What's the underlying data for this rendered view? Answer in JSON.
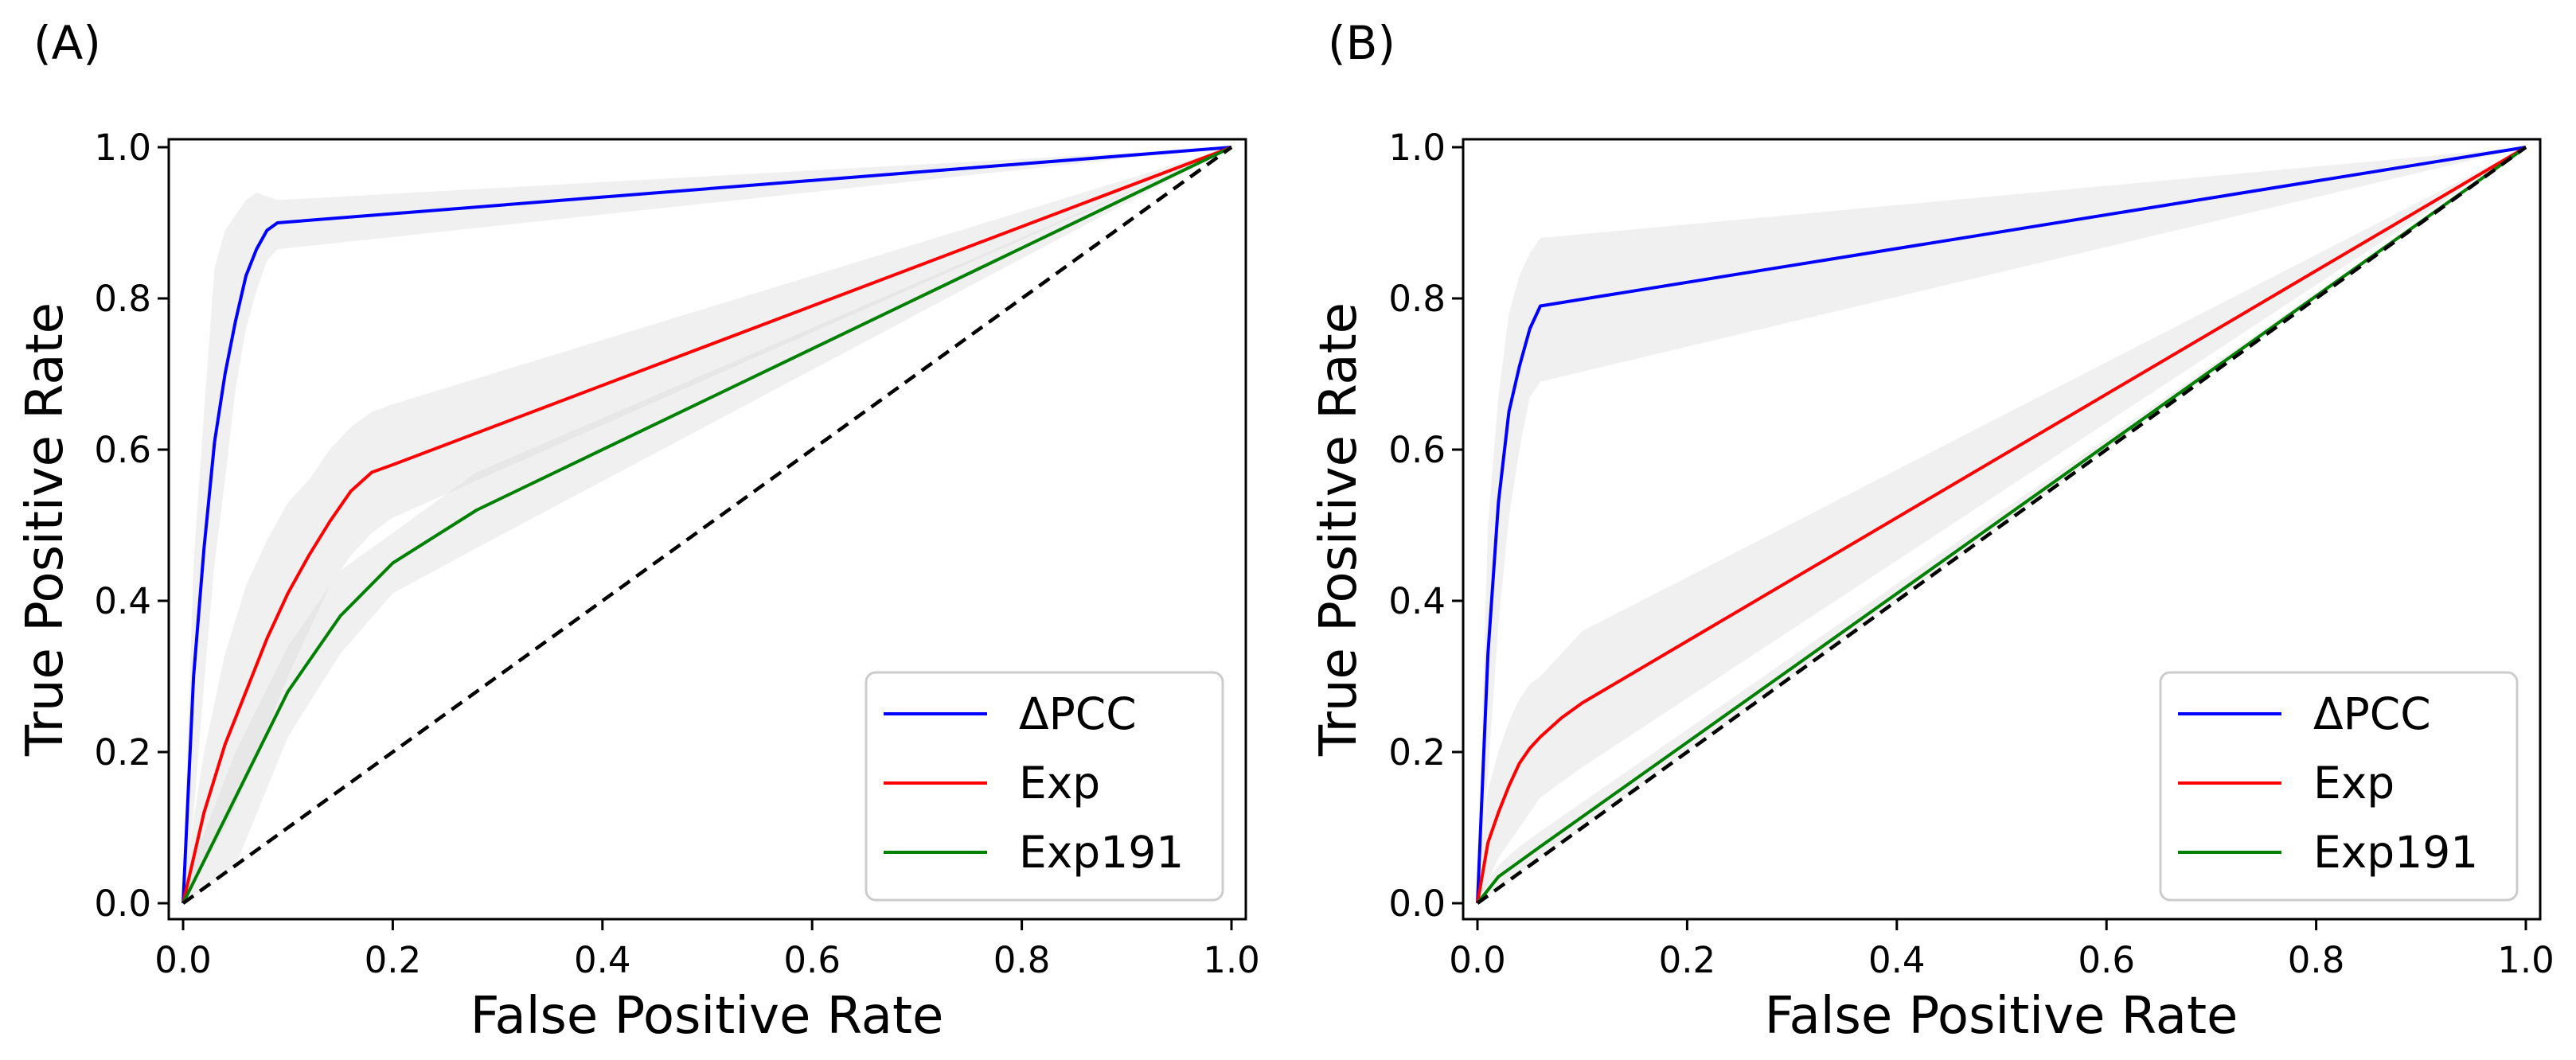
{
  "colors": {
    "dpcc": "#0000ff",
    "exp": "#ff0000",
    "exp191": "#008000",
    "chance": "#000000",
    "band": "#d9d9d9"
  },
  "chart_data": [
    {
      "panel_label": "(A)",
      "type": "line",
      "title": "",
      "xlabel": "False Positive Rate",
      "ylabel": "True Positive Rate",
      "xlim": [
        0.0,
        1.0
      ],
      "ylim": [
        0.0,
        1.0
      ],
      "xticks": [
        "0.0",
        "0.2",
        "0.4",
        "0.6",
        "0.8",
        "1.0"
      ],
      "yticks": [
        "0.0",
        "0.2",
        "0.4",
        "0.6",
        "0.8",
        "1.0"
      ],
      "grid": false,
      "legend_position": "lower-right",
      "series": [
        {
          "name": "ΔPCC",
          "color": "#0000ff",
          "x": [
            0,
            0.01,
            0.02,
            0.03,
            0.04,
            0.05,
            0.06,
            0.07,
            0.08,
            0.09,
            1.0
          ],
          "y": [
            0,
            0.3,
            0.47,
            0.61,
            0.7,
            0.77,
            0.83,
            0.865,
            0.89,
            0.9,
            1.0
          ],
          "band_upper": [
            0.02,
            0.45,
            0.65,
            0.84,
            0.89,
            0.91,
            0.93,
            0.94,
            0.935,
            0.93,
            1.0
          ],
          "band_lower": [
            0,
            0.12,
            0.29,
            0.45,
            0.56,
            0.68,
            0.76,
            0.81,
            0.85,
            0.865,
            1.0
          ]
        },
        {
          "name": "Exp",
          "color": "#ff0000",
          "x": [
            0,
            0.02,
            0.04,
            0.06,
            0.08,
            0.1,
            0.12,
            0.14,
            0.16,
            0.18,
            0.2,
            1.0
          ],
          "y": [
            0,
            0.12,
            0.21,
            0.28,
            0.35,
            0.41,
            0.46,
            0.505,
            0.545,
            0.57,
            0.58,
            1.0
          ],
          "band_upper": [
            0.02,
            0.2,
            0.33,
            0.42,
            0.48,
            0.53,
            0.56,
            0.6,
            0.63,
            0.65,
            0.66,
            1.0
          ],
          "band_lower": [
            0,
            0.05,
            0.1,
            0.16,
            0.23,
            0.3,
            0.36,
            0.42,
            0.46,
            0.49,
            0.51,
            1.0
          ]
        },
        {
          "name": "Exp191",
          "color": "#008000",
          "x": [
            0,
            0.05,
            0.1,
            0.15,
            0.2,
            0.28,
            1.0
          ],
          "y": [
            0,
            0.14,
            0.28,
            0.38,
            0.45,
            0.52,
            1.0
          ],
          "band_upper": [
            0.02,
            0.2,
            0.34,
            0.44,
            0.49,
            0.57,
            1.0
          ],
          "band_lower": [
            0,
            0.05,
            0.22,
            0.33,
            0.41,
            0.47,
            1.0
          ]
        },
        {
          "name": "chance",
          "color": "#000000",
          "dashed": true,
          "x": [
            0,
            1.0
          ],
          "y": [
            0,
            1.0
          ]
        }
      ]
    },
    {
      "panel_label": "(B)",
      "type": "line",
      "title": "",
      "xlabel": "False Positive Rate",
      "ylabel": "True Positive Rate",
      "xlim": [
        0.0,
        1.0
      ],
      "ylim": [
        0.0,
        1.0
      ],
      "xticks": [
        "0.0",
        "0.2",
        "0.4",
        "0.6",
        "0.8",
        "1.0"
      ],
      "yticks": [
        "0.0",
        "0.2",
        "0.4",
        "0.6",
        "0.8",
        "1.0"
      ],
      "grid": false,
      "legend_position": "lower-right",
      "series": [
        {
          "name": "ΔPCC",
          "color": "#0000ff",
          "x": [
            0,
            0.01,
            0.02,
            0.03,
            0.04,
            0.05,
            0.06,
            1.0
          ],
          "y": [
            0,
            0.33,
            0.53,
            0.65,
            0.71,
            0.76,
            0.79,
            1.0
          ],
          "band_upper": [
            0.02,
            0.5,
            0.67,
            0.78,
            0.83,
            0.86,
            0.88,
            1.0
          ],
          "band_lower": [
            0,
            0.17,
            0.37,
            0.51,
            0.6,
            0.67,
            0.69,
            1.0
          ]
        },
        {
          "name": "Exp",
          "color": "#ff0000",
          "x": [
            0,
            0.01,
            0.02,
            0.03,
            0.04,
            0.05,
            0.06,
            0.08,
            0.1,
            1.0
          ],
          "y": [
            0,
            0.08,
            0.12,
            0.155,
            0.185,
            0.205,
            0.22,
            0.245,
            0.265,
            1.0
          ],
          "band_upper": [
            0.02,
            0.15,
            0.2,
            0.24,
            0.27,
            0.29,
            0.3,
            0.33,
            0.36,
            1.0
          ],
          "band_lower": [
            0,
            0.03,
            0.06,
            0.08,
            0.1,
            0.12,
            0.14,
            0.16,
            0.18,
            1.0
          ]
        },
        {
          "name": "Exp191",
          "color": "#008000",
          "x": [
            0,
            0.02,
            0.04,
            0.06,
            1.0
          ],
          "y": [
            0,
            0.035,
            0.055,
            0.075,
            1.0
          ],
          "band_upper": [
            0.01,
            0.05,
            0.075,
            0.095,
            1.0
          ],
          "band_lower": [
            0,
            0.02,
            0.04,
            0.06,
            1.0
          ]
        },
        {
          "name": "chance",
          "color": "#000000",
          "dashed": true,
          "x": [
            0,
            1.0
          ],
          "y": [
            0,
            1.0
          ]
        }
      ]
    }
  ]
}
